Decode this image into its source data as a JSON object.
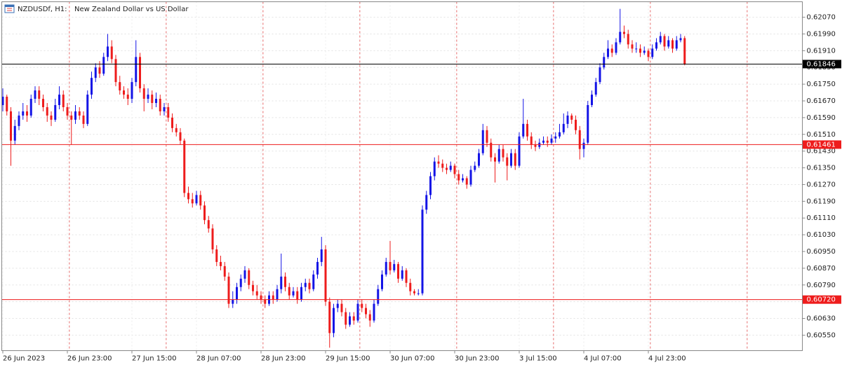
{
  "chart_data": {
    "type": "candlestick",
    "symbol": "NZDUSDf, H1:",
    "description": "New Zealand Dollar vs US Dollar",
    "up_color": "#1414e6",
    "down_color": "#ee1c1c",
    "grid": true,
    "ylim": [
      0.60476,
      0.62144
    ],
    "yticks": [
      {
        "value": 0.6207,
        "label": "0.62070"
      },
      {
        "value": 0.6199,
        "label": "0.61990"
      },
      {
        "value": 0.6191,
        "label": "0.61910"
      },
      {
        "value": 0.6183,
        "label": "0.61830"
      },
      {
        "value": 0.6175,
        "label": "0.61750"
      },
      {
        "value": 0.6167,
        "label": "0.61670"
      },
      {
        "value": 0.6159,
        "label": "0.61590"
      },
      {
        "value": 0.6151,
        "label": "0.61510"
      },
      {
        "value": 0.6143,
        "label": "0.61430"
      },
      {
        "value": 0.6135,
        "label": "0.61350"
      },
      {
        "value": 0.6127,
        "label": "0.61270"
      },
      {
        "value": 0.6119,
        "label": "0.61190"
      },
      {
        "value": 0.6111,
        "label": "0.61110"
      },
      {
        "value": 0.6103,
        "label": "0.61030"
      },
      {
        "value": 0.6095,
        "label": "0.60950"
      },
      {
        "value": 0.6087,
        "label": "0.60870"
      },
      {
        "value": 0.6079,
        "label": "0.60790"
      },
      {
        "value": 0.6071,
        "label": "0.60710"
      },
      {
        "value": 0.6063,
        "label": "0.60630"
      },
      {
        "value": 0.6055,
        "label": "0.60550"
      }
    ],
    "levels": [
      {
        "value": 0.61846,
        "color": "#000000"
      },
      {
        "value": 0.61461,
        "color": "#ee1c1c"
      },
      {
        "value": 0.6072,
        "label": "0.60720",
        "color": "#ee1c1c"
      }
    ],
    "categories": [
      "26 Jun 2023",
      null,
      null,
      null,
      null,
      null,
      null,
      null,
      null,
      null,
      null,
      null,
      null,
      null,
      null,
      null,
      "26 Jun 23:00",
      null,
      null,
      null,
      null,
      null,
      null,
      null,
      null,
      null,
      null,
      null,
      null,
      null,
      null,
      null,
      "27 Jun 15:00",
      null,
      null,
      null,
      null,
      null,
      null,
      null,
      null,
      null,
      null,
      null,
      null,
      null,
      null,
      null,
      "28 Jun 07:00",
      null,
      null,
      null,
      null,
      null,
      null,
      null,
      null,
      null,
      null,
      null,
      null,
      null,
      null,
      null,
      "28 Jun 23:00",
      null,
      null,
      null,
      null,
      null,
      null,
      null,
      null,
      null,
      null,
      null,
      null,
      null,
      null,
      null,
      "29 Jun 15:00",
      null,
      null,
      null,
      null,
      null,
      null,
      null,
      null,
      null,
      null,
      null,
      null,
      null,
      null,
      null,
      "30 Jun 07:00",
      null,
      null,
      null,
      null,
      null,
      null,
      null,
      null,
      null,
      null,
      null,
      null,
      null,
      null,
      null,
      "30 Jun 23:00",
      null,
      null,
      null,
      null,
      null,
      null,
      null,
      null,
      null,
      null,
      null,
      null,
      null,
      null,
      null,
      "3 Jul 15:00",
      null,
      null,
      null,
      null,
      null,
      null,
      null,
      null,
      null,
      null,
      null,
      null,
      null,
      null,
      null,
      "4 Jul 07:00",
      null,
      null,
      null,
      null,
      null,
      null,
      null,
      null,
      null,
      null,
      null,
      null,
      null,
      null,
      null,
      "4 Jul 23:00",
      null,
      null,
      null,
      null,
      null,
      null,
      null,
      null,
      null
    ],
    "ohlc": [
      [
        0.6165,
        0.6173,
        0.6162,
        0.6169
      ],
      [
        0.6169,
        0.617,
        0.616,
        0.6162
      ],
      [
        0.6162,
        0.6164,
        0.6136,
        0.6148
      ],
      [
        0.6148,
        0.6158,
        0.6146,
        0.6155
      ],
      [
        0.6155,
        0.6162,
        0.6153,
        0.616
      ],
      [
        0.616,
        0.6166,
        0.6158,
        0.6162
      ],
      [
        0.6162,
        0.6165,
        0.6157,
        0.616
      ],
      [
        0.616,
        0.617,
        0.6159,
        0.6168
      ],
      [
        0.6168,
        0.6174,
        0.6166,
        0.6172
      ],
      [
        0.6172,
        0.6174,
        0.6165,
        0.6168
      ],
      [
        0.6168,
        0.617,
        0.6162,
        0.6164
      ],
      [
        0.6164,
        0.6166,
        0.6157,
        0.616
      ],
      [
        0.616,
        0.6162,
        0.6155,
        0.6158
      ],
      [
        0.6158,
        0.6168,
        0.6157,
        0.6165
      ],
      [
        0.6165,
        0.6174,
        0.6163,
        0.617
      ],
      [
        0.617,
        0.6172,
        0.6162,
        0.6164
      ],
      [
        0.6164,
        0.6166,
        0.6158,
        0.616
      ],
      [
        0.616,
        0.6162,
        0.6146,
        0.6158
      ],
      [
        0.6158,
        0.6165,
        0.6156,
        0.6162
      ],
      [
        0.6162,
        0.6164,
        0.6158,
        0.616
      ],
      [
        0.616,
        0.6162,
        0.6154,
        0.6156
      ],
      [
        0.6156,
        0.6172,
        0.6155,
        0.617
      ],
      [
        0.617,
        0.6181,
        0.6168,
        0.6178
      ],
      [
        0.6178,
        0.6185,
        0.6176,
        0.6183
      ],
      [
        0.6183,
        0.6186,
        0.6178,
        0.618
      ],
      [
        0.618,
        0.619,
        0.6179,
        0.6188
      ],
      [
        0.6188,
        0.6199,
        0.6186,
        0.6193
      ],
      [
        0.6193,
        0.6196,
        0.6185,
        0.6187
      ],
      [
        0.6187,
        0.6189,
        0.6174,
        0.6176
      ],
      [
        0.6176,
        0.6179,
        0.617,
        0.6172
      ],
      [
        0.6172,
        0.6174,
        0.6168,
        0.617
      ],
      [
        0.617,
        0.6173,
        0.6165,
        0.6168
      ],
      [
        0.6168,
        0.6178,
        0.6166,
        0.6176
      ],
      [
        0.6176,
        0.6196,
        0.6174,
        0.6188
      ],
      [
        0.6188,
        0.619,
        0.6171,
        0.6173
      ],
      [
        0.6173,
        0.6175,
        0.6162,
        0.6168
      ],
      [
        0.6168,
        0.6173,
        0.6166,
        0.617
      ],
      [
        0.617,
        0.6172,
        0.6163,
        0.6166
      ],
      [
        0.6166,
        0.6171,
        0.6164,
        0.6168
      ],
      [
        0.6168,
        0.617,
        0.616,
        0.6162
      ],
      [
        0.6162,
        0.6166,
        0.616,
        0.6164
      ],
      [
        0.6164,
        0.6166,
        0.6157,
        0.6159
      ],
      [
        0.6159,
        0.6161,
        0.6152,
        0.6154
      ],
      [
        0.6154,
        0.6156,
        0.615,
        0.6152
      ],
      [
        0.6152,
        0.6154,
        0.6146,
        0.6148
      ],
      [
        0.6148,
        0.6149,
        0.6121,
        0.6123
      ],
      [
        0.6123,
        0.6126,
        0.6118,
        0.612
      ],
      [
        0.612,
        0.6123,
        0.6116,
        0.6118
      ],
      [
        0.6118,
        0.6124,
        0.6117,
        0.6122
      ],
      [
        0.6122,
        0.6124,
        0.6115,
        0.6117
      ],
      [
        0.6117,
        0.6119,
        0.6108,
        0.611
      ],
      [
        0.611,
        0.6112,
        0.6104,
        0.6106
      ],
      [
        0.6106,
        0.6108,
        0.6094,
        0.6096
      ],
      [
        0.6096,
        0.6098,
        0.6088,
        0.609
      ],
      [
        0.609,
        0.6093,
        0.6086,
        0.6088
      ],
      [
        0.6088,
        0.609,
        0.6081,
        0.6083
      ],
      [
        0.6083,
        0.6085,
        0.6068,
        0.607
      ],
      [
        0.607,
        0.6076,
        0.6068,
        0.6072
      ],
      [
        0.6072,
        0.608,
        0.607,
        0.6078
      ],
      [
        0.6078,
        0.6084,
        0.6076,
        0.6082
      ],
      [
        0.6082,
        0.6088,
        0.608,
        0.6086
      ],
      [
        0.6086,
        0.6087,
        0.6077,
        0.6079
      ],
      [
        0.6079,
        0.6081,
        0.6074,
        0.6076
      ],
      [
        0.6076,
        0.6079,
        0.6072,
        0.6074
      ],
      [
        0.6074,
        0.6076,
        0.607,
        0.6072
      ],
      [
        0.6072,
        0.6074,
        0.6068,
        0.607
      ],
      [
        0.607,
        0.6076,
        0.6069,
        0.6074
      ],
      [
        0.6074,
        0.6076,
        0.607,
        0.6072
      ],
      [
        0.6072,
        0.6079,
        0.6071,
        0.6077
      ],
      [
        0.6077,
        0.6094,
        0.6075,
        0.6083
      ],
      [
        0.6083,
        0.6085,
        0.6076,
        0.6078
      ],
      [
        0.6078,
        0.608,
        0.6072,
        0.6074
      ],
      [
        0.6074,
        0.6078,
        0.6073,
        0.6076
      ],
      [
        0.6076,
        0.6078,
        0.607,
        0.6072
      ],
      [
        0.6072,
        0.608,
        0.6071,
        0.6078
      ],
      [
        0.6078,
        0.6082,
        0.6076,
        0.608
      ],
      [
        0.608,
        0.6082,
        0.6075,
        0.6077
      ],
      [
        0.6077,
        0.6086,
        0.6076,
        0.6084
      ],
      [
        0.6084,
        0.6092,
        0.6082,
        0.609
      ],
      [
        0.609,
        0.6102,
        0.6088,
        0.6096
      ],
      [
        0.6096,
        0.6098,
        0.6069,
        0.6071
      ],
      [
        0.6071,
        0.6073,
        0.6049,
        0.6056
      ],
      [
        0.6056,
        0.607,
        0.6054,
        0.6068
      ],
      [
        0.6068,
        0.6072,
        0.6066,
        0.607
      ],
      [
        0.607,
        0.6072,
        0.6064,
        0.6066
      ],
      [
        0.6066,
        0.6068,
        0.6058,
        0.606
      ],
      [
        0.606,
        0.6066,
        0.6059,
        0.6064
      ],
      [
        0.6064,
        0.6066,
        0.606,
        0.6062
      ],
      [
        0.6062,
        0.6072,
        0.6061,
        0.607
      ],
      [
        0.607,
        0.6072,
        0.6066,
        0.6068
      ],
      [
        0.6068,
        0.607,
        0.6063,
        0.6065
      ],
      [
        0.6065,
        0.6067,
        0.6059,
        0.6062
      ],
      [
        0.6062,
        0.6072,
        0.6061,
        0.607
      ],
      [
        0.607,
        0.6079,
        0.6069,
        0.6077
      ],
      [
        0.6077,
        0.6086,
        0.6076,
        0.6084
      ],
      [
        0.6084,
        0.6092,
        0.6083,
        0.609
      ],
      [
        0.609,
        0.61,
        0.6084,
        0.6086
      ],
      [
        0.6086,
        0.6091,
        0.6085,
        0.6089
      ],
      [
        0.6089,
        0.609,
        0.608,
        0.6082
      ],
      [
        0.6082,
        0.6088,
        0.6081,
        0.6086
      ],
      [
        0.6086,
        0.6087,
        0.6078,
        0.608
      ],
      [
        0.608,
        0.6082,
        0.6074,
        0.6076
      ],
      [
        0.6076,
        0.6077,
        0.6074,
        0.6075
      ],
      [
        0.6075,
        0.6077,
        0.6074,
        0.6075
      ],
      [
        0.6075,
        0.6117,
        0.6074,
        0.6115
      ],
      [
        0.6115,
        0.6124,
        0.6113,
        0.6122
      ],
      [
        0.6122,
        0.6133,
        0.612,
        0.6131
      ],
      [
        0.6131,
        0.614,
        0.6129,
        0.6138
      ],
      [
        0.6138,
        0.6141,
        0.6135,
        0.6137
      ],
      [
        0.6137,
        0.6139,
        0.6133,
        0.6135
      ],
      [
        0.6135,
        0.6137,
        0.6132,
        0.6134
      ],
      [
        0.6134,
        0.6138,
        0.6133,
        0.6136
      ],
      [
        0.6136,
        0.6137,
        0.613,
        0.6132
      ],
      [
        0.6132,
        0.6134,
        0.6127,
        0.6129
      ],
      [
        0.6129,
        0.6132,
        0.6128,
        0.613
      ],
      [
        0.613,
        0.6131,
        0.6125,
        0.6127
      ],
      [
        0.6127,
        0.6136,
        0.6126,
        0.6134
      ],
      [
        0.6134,
        0.6138,
        0.6133,
        0.6136
      ],
      [
        0.6136,
        0.6144,
        0.6135,
        0.6142
      ],
      [
        0.6142,
        0.6156,
        0.6141,
        0.6153
      ],
      [
        0.6153,
        0.6155,
        0.6145,
        0.6147
      ],
      [
        0.6147,
        0.6149,
        0.6138,
        0.614
      ],
      [
        0.614,
        0.6142,
        0.6128,
        0.6138
      ],
      [
        0.6138,
        0.6146,
        0.6137,
        0.6144
      ],
      [
        0.6144,
        0.6146,
        0.6138,
        0.614
      ],
      [
        0.614,
        0.6142,
        0.6129,
        0.6136
      ],
      [
        0.6136,
        0.6144,
        0.6135,
        0.6142
      ],
      [
        0.6142,
        0.6144,
        0.6134,
        0.6136
      ],
      [
        0.6136,
        0.6152,
        0.6135,
        0.615
      ],
      [
        0.615,
        0.6168,
        0.6149,
        0.6156
      ],
      [
        0.6156,
        0.6158,
        0.6148,
        0.615
      ],
      [
        0.615,
        0.6152,
        0.6144,
        0.6146
      ],
      [
        0.6146,
        0.6148,
        0.6143,
        0.6145
      ],
      [
        0.6145,
        0.6149,
        0.6144,
        0.6147
      ],
      [
        0.6147,
        0.615,
        0.6146,
        0.6148
      ],
      [
        0.6148,
        0.615,
        0.6145,
        0.6147
      ],
      [
        0.6147,
        0.6151,
        0.6146,
        0.6149
      ],
      [
        0.6149,
        0.6152,
        0.6147,
        0.615
      ],
      [
        0.615,
        0.6156,
        0.6149,
        0.6152
      ],
      [
        0.6152,
        0.6161,
        0.6151,
        0.6156
      ],
      [
        0.6156,
        0.6162,
        0.6154,
        0.616
      ],
      [
        0.616,
        0.6161,
        0.6156,
        0.6158
      ],
      [
        0.6158,
        0.616,
        0.6151,
        0.6153
      ],
      [
        0.6153,
        0.6155,
        0.6139,
        0.6144
      ],
      [
        0.6144,
        0.6149,
        0.614,
        0.6147
      ],
      [
        0.6147,
        0.6167,
        0.6146,
        0.6165
      ],
      [
        0.6165,
        0.6172,
        0.6164,
        0.617
      ],
      [
        0.617,
        0.6178,
        0.6169,
        0.6176
      ],
      [
        0.6176,
        0.6185,
        0.6175,
        0.6183
      ],
      [
        0.6183,
        0.619,
        0.6182,
        0.6188
      ],
      [
        0.6188,
        0.6196,
        0.6187,
        0.6192
      ],
      [
        0.6192,
        0.6194,
        0.6188,
        0.619
      ],
      [
        0.619,
        0.6197,
        0.6189,
        0.6195
      ],
      [
        0.6195,
        0.6211,
        0.6194,
        0.62
      ],
      [
        0.62,
        0.6203,
        0.6197,
        0.6199
      ],
      [
        0.6199,
        0.6201,
        0.6192,
        0.6194
      ],
      [
        0.6194,
        0.6196,
        0.619,
        0.6192
      ],
      [
        0.6192,
        0.6195,
        0.619,
        0.6192
      ],
      [
        0.6192,
        0.6194,
        0.6188,
        0.619
      ],
      [
        0.619,
        0.6193,
        0.6189,
        0.6191
      ],
      [
        0.6191,
        0.6192,
        0.6186,
        0.6188
      ],
      [
        0.6188,
        0.6194,
        0.6187,
        0.6192
      ],
      [
        0.6192,
        0.6197,
        0.6191,
        0.6195
      ],
      [
        0.6195,
        0.62,
        0.6194,
        0.6198
      ],
      [
        0.6198,
        0.6199,
        0.6191,
        0.6193
      ],
      [
        0.6193,
        0.6198,
        0.6192,
        0.6196
      ],
      [
        0.6196,
        0.6197,
        0.619,
        0.6192
      ],
      [
        0.6192,
        0.6198,
        0.6191,
        0.6196
      ],
      [
        0.6196,
        0.6199,
        0.6195,
        0.6197
      ],
      [
        0.6197,
        0.6198,
        0.6184,
        0.61846
      ]
    ]
  }
}
